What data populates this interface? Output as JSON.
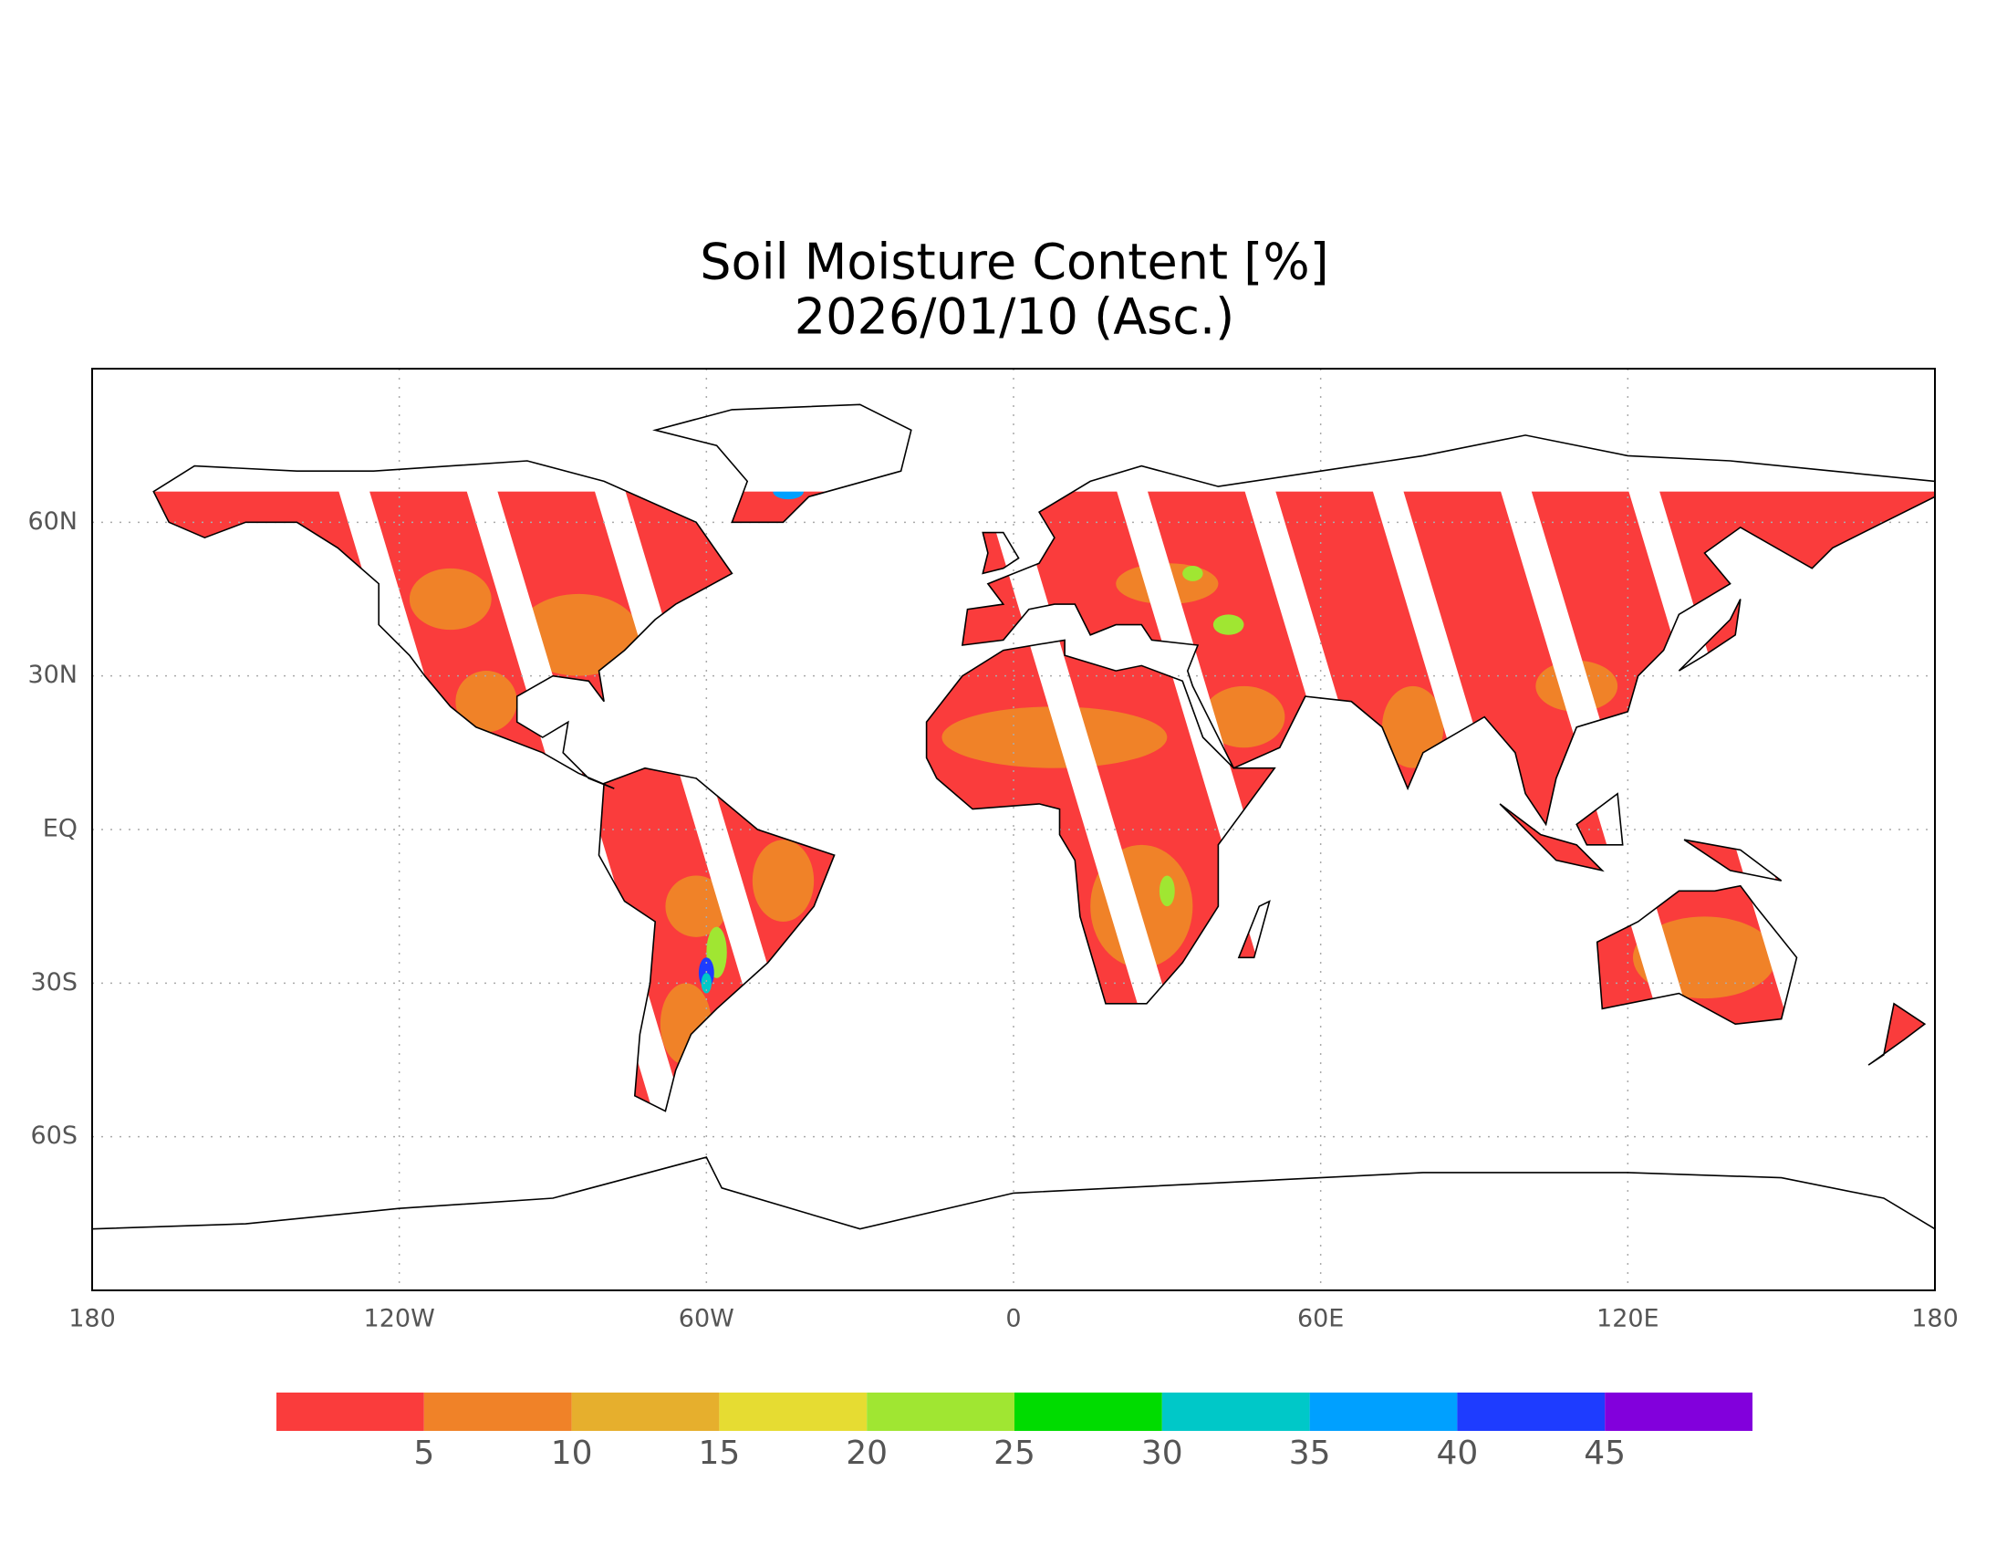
{
  "title": "Soil Moisture Content [%]",
  "subtitle": "2026/01/10 (Asc.)",
  "map": {
    "xlim": [
      -180,
      180
    ],
    "ylim": [
      -90,
      90
    ],
    "xticks": [
      {
        "value": -180,
        "label": "180"
      },
      {
        "value": -120,
        "label": "120W"
      },
      {
        "value": -60,
        "label": "60W"
      },
      0,
      {
        "value": 60,
        "label": "60E"
      },
      {
        "value": 120,
        "label": "120E"
      },
      180
    ],
    "yticks": [
      {
        "value": 60,
        "label": "60N"
      },
      {
        "value": 30,
        "label": "30N"
      },
      {
        "value": 0,
        "label": "EQ"
      },
      {
        "value": -30,
        "label": "30S"
      },
      {
        "value": -60,
        "label": "60S"
      }
    ],
    "grid": true
  },
  "colorbar": {
    "lim": [
      0,
      50
    ],
    "colors": [
      "#fa3c3c",
      "#f08228",
      "#e6af2d",
      "#e6dc32",
      "#a0e632",
      "#00dc00",
      "#00c8c8",
      "#00a0ff",
      "#1e3cff",
      "#8200dc"
    ],
    "ticks": [
      5,
      10,
      15,
      20,
      25,
      30,
      35,
      40,
      45
    ]
  }
}
